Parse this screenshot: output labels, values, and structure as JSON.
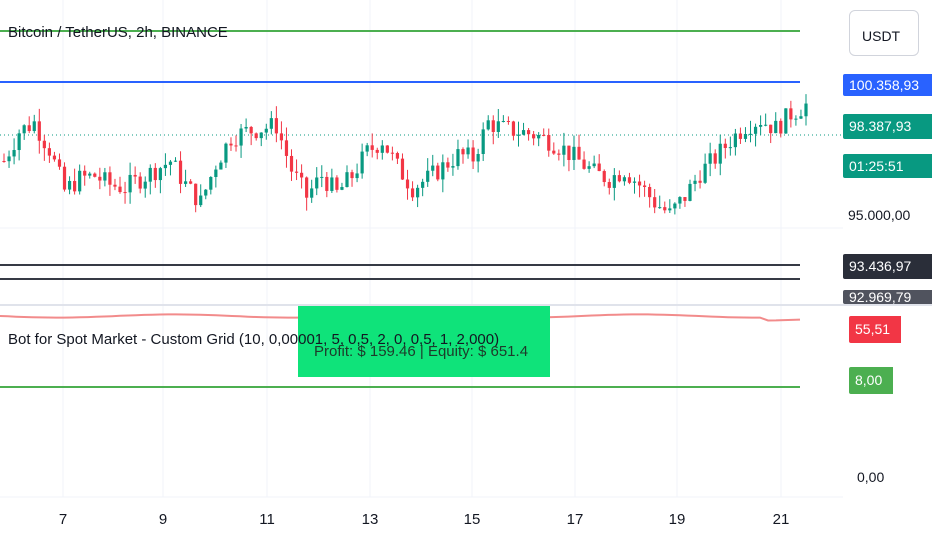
{
  "header": {
    "symbol_title": "Bitcoin / TetherUS, 2h, BINANCE",
    "currency_button": "USDT"
  },
  "price_scale": {
    "badges": {
      "upper_grid": "100.358,93",
      "last_price": "98.387,93",
      "countdown": "01:25:51",
      "lower_grid": "93.436,97",
      "lowest_grid": "92.969,79"
    },
    "tick_label": "95.000,00"
  },
  "indicator": {
    "title": "Bot for Spot Market - Custom Grid (10, 0,00001, 5, 0,5, 2, 0, 0,5, 1, 2,000)",
    "profit_text": "Profit: $ 159.46 | Equity: $ 651.4",
    "rsi_value": "55,51",
    "level_value": "8,00",
    "zero_label": "0,00"
  },
  "time_axis": {
    "labels": [
      "7",
      "9",
      "11",
      "13",
      "15",
      "17",
      "19",
      "21"
    ]
  },
  "colors": {
    "up": "#089981",
    "down": "#f23645",
    "grid_green": "#4caf50",
    "grid_blue": "#2962ff",
    "dark_line": "#363a45",
    "label_green": "#0fe37a"
  },
  "chart_data": {
    "type": "candlestick",
    "y_range": [
      92500,
      101200
    ],
    "grid_levels": {
      "upper_green": 101000,
      "upper_blue": 100358.93,
      "last_price": 98387.93,
      "lower_dark": 93436.97,
      "lowest_dark": 92969.79
    },
    "close_path": [
      96800,
      97800,
      98100,
      97200,
      95800,
      96200,
      96300,
      96000,
      95900,
      96200,
      96500,
      96800,
      96000,
      95400,
      96700,
      97600,
      97800,
      97900,
      98000,
      96500,
      95600,
      96300,
      95700,
      96300,
      97100,
      97500,
      96600,
      95900,
      96200,
      96600,
      97000,
      96900,
      98100,
      97900,
      97800,
      97700,
      97500,
      97200,
      96800,
      96400,
      96200,
      96500,
      96000,
      95400,
      95000,
      95600,
      96400,
      96900,
      97500,
      98000,
      98200,
      97900,
      98400,
      98700
    ]
  }
}
